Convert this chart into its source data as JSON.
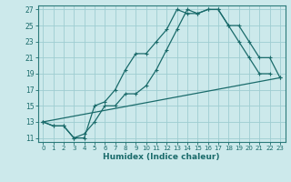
{
  "title": "",
  "xlabel": "Humidex (Indice chaleur)",
  "bg_color": "#cce9eb",
  "grid_color": "#9ecdd1",
  "line_color": "#1a6b6b",
  "spine_color": "#2a7a7a",
  "xlim": [
    -0.5,
    23.5
  ],
  "ylim": [
    10.5,
    27.5
  ],
  "xticks": [
    0,
    1,
    2,
    3,
    4,
    5,
    6,
    7,
    8,
    9,
    10,
    11,
    12,
    13,
    14,
    15,
    16,
    17,
    18,
    19,
    20,
    21,
    22,
    23
  ],
  "yticks": [
    11,
    13,
    15,
    17,
    19,
    21,
    23,
    25,
    27
  ],
  "line1_x": [
    0,
    1,
    2,
    3,
    4,
    5,
    6,
    7,
    8,
    9,
    10,
    11,
    12,
    13,
    14,
    15,
    16,
    17,
    18,
    19,
    20,
    21,
    22
  ],
  "line1_y": [
    13,
    12.5,
    12.5,
    11,
    11,
    15,
    15.5,
    17,
    19.5,
    21.5,
    21.5,
    23,
    24.5,
    27,
    26.5,
    26.5,
    27,
    27,
    25,
    23,
    21,
    19,
    19
  ],
  "line2_x": [
    0,
    1,
    2,
    3,
    4,
    5,
    6,
    7,
    8,
    9,
    10,
    11,
    12,
    13,
    14,
    15,
    16,
    17,
    18,
    19,
    20,
    21,
    22,
    23
  ],
  "line2_y": [
    13,
    12.5,
    12.5,
    11,
    11.5,
    13,
    15,
    15,
    16.5,
    16.5,
    17.5,
    19.5,
    22,
    24.5,
    27,
    26.5,
    27,
    27,
    25,
    25,
    23,
    21,
    21,
    18.5
  ],
  "line3_x": [
    0,
    23
  ],
  "line3_y": [
    13,
    18.5
  ]
}
